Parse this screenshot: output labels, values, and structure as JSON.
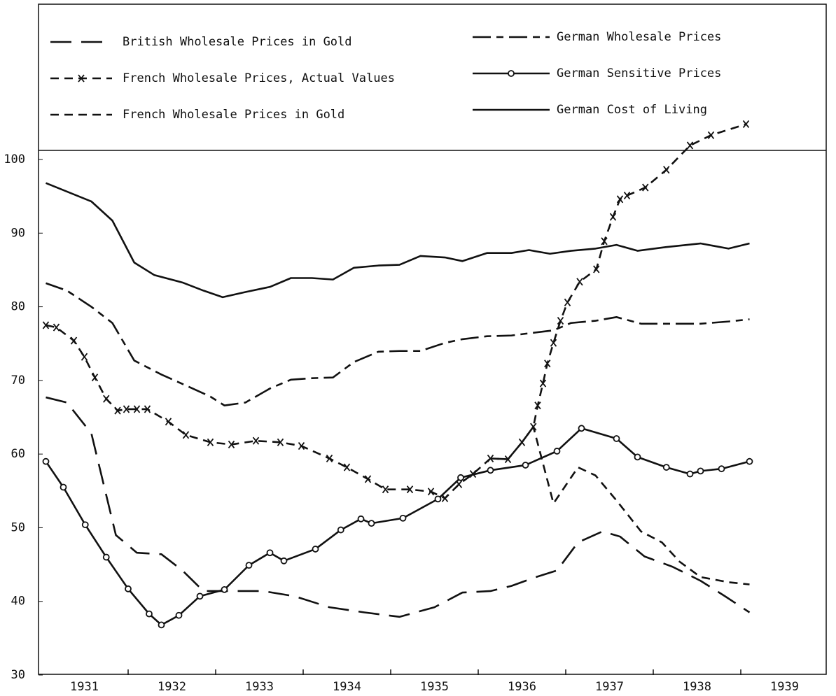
{
  "chart_data": {
    "type": "line",
    "xlim": [
      1931,
      1940
    ],
    "ylim": [
      30,
      100
    ],
    "yticks": [
      30,
      40,
      50,
      60,
      70,
      80,
      90,
      100
    ],
    "xticks": [
      {
        "value": 1931.5,
        "label": "1931"
      },
      {
        "value": 1932.5,
        "label": "1932"
      },
      {
        "value": 1933.5,
        "label": "1933"
      },
      {
        "value": 1934.5,
        "label": "1934"
      },
      {
        "value": 1935.5,
        "label": "1935"
      },
      {
        "value": 1936.5,
        "label": "1936"
      },
      {
        "value": 1937.5,
        "label": "1937"
      },
      {
        "value": 1938.5,
        "label": "1938"
      },
      {
        "value": 1939.5,
        "label": "1939"
      }
    ],
    "year_boundaries": [
      1932,
      1933,
      1934,
      1935,
      1936,
      1937,
      1938,
      1939
    ],
    "series": [
      {
        "name": "British Wholesale Prices in Gold",
        "color": "#111111",
        "line_style": "long-dash",
        "marker": null,
        "x": [
          1931.06,
          1931.3,
          1931.58,
          1931.86,
          1932.1,
          1932.38,
          1932.62,
          1932.86,
          1933.18,
          1933.54,
          1933.9,
          1934.3,
          1934.7,
          1935.1,
          1935.5,
          1935.82,
          1936.14,
          1936.38,
          1936.66,
          1936.9,
          1937.14,
          1937.42,
          1937.62,
          1937.9,
          1938.22,
          1938.54,
          1938.82,
          1939.1
        ],
        "values": [
          67.7,
          67,
          62.8,
          49,
          46.6,
          46.4,
          44.2,
          41.4,
          41.4,
          41.4,
          40.7,
          39.2,
          38.5,
          37.9,
          39.2,
          41.2,
          41.4,
          42.1,
          43.3,
          44.2,
          48,
          49.5,
          48.8,
          46.1,
          44.7,
          42.8,
          40.7,
          38.5
        ]
      },
      {
        "name": "French Wholesale Prices, Actual Values",
        "color": "#111111",
        "line_style": "dash",
        "marker": "x",
        "x": [
          1931.06,
          1931.18,
          1931.38,
          1931.5,
          1931.62,
          1931.75,
          1931.88,
          1931.98,
          1932.1,
          1932.22,
          1932.46,
          1932.66,
          1932.94,
          1933.18,
          1933.46,
          1933.74,
          1933.98,
          1934.3,
          1934.5,
          1934.74,
          1934.94,
          1935.22,
          1935.46,
          1935.62,
          1935.78,
          1935.94,
          1936.14,
          1936.34,
          1936.5,
          1936.63,
          1936.68,
          1936.74,
          1936.79,
          1936.86,
          1936.94,
          1937.02,
          1937.16,
          1937.35,
          1937.44,
          1937.54,
          1937.62,
          1937.7,
          1937.91,
          1938.15,
          1938.42,
          1938.66,
          1939.06
        ],
        "values": [
          77.5,
          77.2,
          75.4,
          73.2,
          70.4,
          67.5,
          65.9,
          66.1,
          66.1,
          66.1,
          64.4,
          62.6,
          61.6,
          61.3,
          61.8,
          61.6,
          61.1,
          59.4,
          58.2,
          56.6,
          55.2,
          55.2,
          54.9,
          54,
          55.9,
          57.3,
          59.4,
          59.3,
          61.6,
          63.7,
          66.6,
          69.6,
          72.3,
          75.1,
          78.1,
          80.6,
          83.4,
          85.1,
          88.9,
          92.2,
          94.6,
          95.1,
          96.2,
          98.6,
          101.9,
          103.3,
          104.8
        ]
      },
      {
        "name": "French Wholesale Prices in Gold",
        "color": "#111111",
        "line_style": "dash",
        "marker": null,
        "x": [
          1936.14,
          1936.34,
          1936.5,
          1936.63,
          1936.86,
          1937.14,
          1937.34,
          1937.58,
          1937.86,
          1938.1,
          1938.3,
          1938.54,
          1938.86,
          1939.1
        ],
        "values": [
          59.4,
          59.3,
          61.6,
          63.7,
          53.3,
          58.2,
          57.1,
          53.7,
          49.5,
          48,
          45.4,
          43.3,
          42.6,
          42.3
        ]
      },
      {
        "name": "German Wholesale Prices",
        "color": "#111111",
        "line_style": "long-short",
        "marker": null,
        "x": [
          1931.06,
          1931.3,
          1931.58,
          1931.82,
          1932.07,
          1932.38,
          1932.7,
          1932.94,
          1933.1,
          1933.34,
          1933.62,
          1933.86,
          1934.1,
          1934.34,
          1934.58,
          1934.86,
          1935.1,
          1935.34,
          1935.62,
          1935.82,
          1936.1,
          1936.38,
          1936.58,
          1936.86,
          1937.06,
          1937.34,
          1937.58,
          1937.86,
          1938.14,
          1938.54,
          1938.86,
          1939.1
        ],
        "values": [
          83.2,
          82.2,
          80,
          77.8,
          72.7,
          70.8,
          69.1,
          67.8,
          66.6,
          67,
          68.9,
          70.1,
          70.3,
          70.4,
          72.5,
          73.9,
          74,
          74,
          75.1,
          75.6,
          76,
          76.1,
          76.4,
          76.8,
          77.8,
          78.1,
          78.6,
          77.7,
          77.7,
          77.7,
          78,
          78.3
        ]
      },
      {
        "name": "German Sensitive Prices",
        "color": "#111111",
        "line_style": "solid",
        "marker": "o",
        "x": [
          1931.06,
          1931.26,
          1931.51,
          1931.75,
          1932.0,
          1932.24,
          1932.38,
          1932.58,
          1932.82,
          1933.1,
          1933.38,
          1933.62,
          1933.78,
          1934.14,
          1934.43,
          1934.66,
          1934.78,
          1935.14,
          1935.54,
          1935.8,
          1936.14,
          1936.54,
          1936.9,
          1937.18,
          1937.58,
          1937.82,
          1938.15,
          1938.42,
          1938.54,
          1938.78,
          1939.1
        ],
        "values": [
          59,
          55.5,
          50.4,
          46,
          41.7,
          38.3,
          36.8,
          38.1,
          40.7,
          41.6,
          44.9,
          46.6,
          45.5,
          47.1,
          49.7,
          51.2,
          50.6,
          51.3,
          53.9,
          56.8,
          57.8,
          58.5,
          60.4,
          63.5,
          62.1,
          59.6,
          58.2,
          57.3,
          57.7,
          58,
          59
        ]
      },
      {
        "name": "German Cost of Living",
        "color": "#111111",
        "line_style": "solid",
        "marker": null,
        "x": [
          1931.06,
          1931.58,
          1931.82,
          1932.07,
          1932.3,
          1932.62,
          1932.86,
          1933.08,
          1933.34,
          1933.62,
          1933.86,
          1934.1,
          1934.34,
          1934.58,
          1934.86,
          1935.1,
          1935.34,
          1935.62,
          1935.82,
          1936.1,
          1936.38,
          1936.58,
          1936.82,
          1937.06,
          1937.34,
          1937.58,
          1937.82,
          1938.14,
          1938.54,
          1938.86,
          1939.1
        ],
        "values": [
          96.8,
          94.3,
          91.7,
          86,
          84.3,
          83.3,
          82.2,
          81.3,
          82,
          82.7,
          83.9,
          83.9,
          83.7,
          85.3,
          85.6,
          85.7,
          86.9,
          86.7,
          86.2,
          87.3,
          87.3,
          87.7,
          87.2,
          87.6,
          87.9,
          88.4,
          87.6,
          88.1,
          88.6,
          87.9,
          88.6
        ]
      }
    ]
  }
}
